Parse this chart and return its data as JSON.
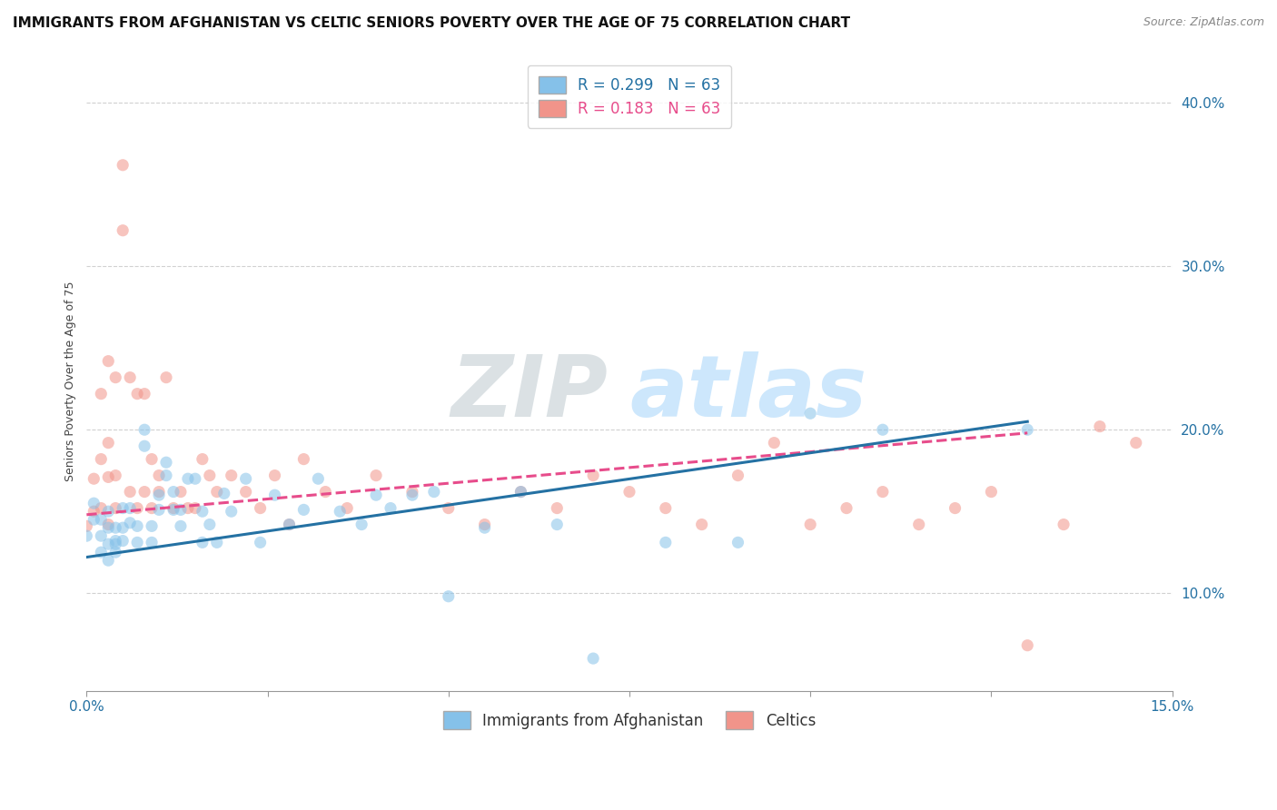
{
  "title": "IMMIGRANTS FROM AFGHANISTAN VS CELTIC SENIORS POVERTY OVER THE AGE OF 75 CORRELATION CHART",
  "source": "Source: ZipAtlas.com",
  "ylabel": "Seniors Poverty Over the Age of 75",
  "xlim": [
    0.0,
    0.15
  ],
  "ylim": [
    0.04,
    0.42
  ],
  "xticks": [
    0.0,
    0.025,
    0.05,
    0.075,
    0.1,
    0.125,
    0.15
  ],
  "xtick_labels": [
    "0.0%",
    "",
    "",
    "",
    "",
    "",
    "15.0%"
  ],
  "yticks": [
    0.1,
    0.2,
    0.3,
    0.4
  ],
  "ytick_labels": [
    "10.0%",
    "20.0%",
    "30.0%",
    "40.0%"
  ],
  "blue_color": "#85c1e9",
  "pink_color": "#f1948a",
  "blue_line_color": "#2471a3",
  "pink_line_color": "#e74c8b",
  "legend_label_blue": "Immigrants from Afghanistan",
  "legend_label_pink": "Celtics",
  "watermark_zip": "ZIP",
  "watermark_atlas": "atlas",
  "blue_scatter_x": [
    0.0,
    0.001,
    0.001,
    0.002,
    0.002,
    0.002,
    0.003,
    0.003,
    0.003,
    0.003,
    0.004,
    0.004,
    0.004,
    0.004,
    0.005,
    0.005,
    0.005,
    0.006,
    0.006,
    0.007,
    0.007,
    0.008,
    0.008,
    0.009,
    0.009,
    0.01,
    0.01,
    0.011,
    0.011,
    0.012,
    0.012,
    0.013,
    0.013,
    0.014,
    0.015,
    0.016,
    0.016,
    0.017,
    0.018,
    0.019,
    0.02,
    0.022,
    0.024,
    0.026,
    0.028,
    0.03,
    0.032,
    0.035,
    0.038,
    0.04,
    0.042,
    0.045,
    0.048,
    0.05,
    0.055,
    0.06,
    0.065,
    0.07,
    0.08,
    0.09,
    0.1,
    0.11,
    0.13
  ],
  "blue_scatter_y": [
    0.135,
    0.145,
    0.155,
    0.125,
    0.135,
    0.145,
    0.13,
    0.14,
    0.15,
    0.12,
    0.125,
    0.13,
    0.14,
    0.132,
    0.14,
    0.152,
    0.132,
    0.143,
    0.152,
    0.131,
    0.141,
    0.2,
    0.19,
    0.141,
    0.131,
    0.151,
    0.16,
    0.18,
    0.172,
    0.151,
    0.162,
    0.141,
    0.151,
    0.17,
    0.17,
    0.131,
    0.15,
    0.142,
    0.131,
    0.161,
    0.15,
    0.17,
    0.131,
    0.16,
    0.142,
    0.151,
    0.17,
    0.15,
    0.142,
    0.16,
    0.152,
    0.16,
    0.162,
    0.098,
    0.14,
    0.162,
    0.142,
    0.06,
    0.131,
    0.131,
    0.21,
    0.2,
    0.2
  ],
  "pink_scatter_x": [
    0.0,
    0.001,
    0.001,
    0.002,
    0.002,
    0.002,
    0.003,
    0.003,
    0.003,
    0.003,
    0.004,
    0.004,
    0.004,
    0.005,
    0.005,
    0.006,
    0.006,
    0.007,
    0.007,
    0.008,
    0.008,
    0.009,
    0.009,
    0.01,
    0.01,
    0.011,
    0.012,
    0.013,
    0.014,
    0.015,
    0.016,
    0.017,
    0.018,
    0.02,
    0.022,
    0.024,
    0.026,
    0.028,
    0.03,
    0.033,
    0.036,
    0.04,
    0.045,
    0.05,
    0.055,
    0.06,
    0.065,
    0.07,
    0.075,
    0.08,
    0.085,
    0.09,
    0.095,
    0.1,
    0.105,
    0.11,
    0.115,
    0.12,
    0.125,
    0.13,
    0.135,
    0.14,
    0.145
  ],
  "pink_scatter_y": [
    0.141,
    0.15,
    0.17,
    0.152,
    0.182,
    0.222,
    0.142,
    0.171,
    0.192,
    0.242,
    0.232,
    0.172,
    0.152,
    0.322,
    0.362,
    0.232,
    0.162,
    0.152,
    0.222,
    0.222,
    0.162,
    0.152,
    0.182,
    0.162,
    0.172,
    0.232,
    0.152,
    0.162,
    0.152,
    0.152,
    0.182,
    0.172,
    0.162,
    0.172,
    0.162,
    0.152,
    0.172,
    0.142,
    0.182,
    0.162,
    0.152,
    0.172,
    0.162,
    0.152,
    0.142,
    0.162,
    0.152,
    0.172,
    0.162,
    0.152,
    0.142,
    0.172,
    0.192,
    0.142,
    0.152,
    0.162,
    0.142,
    0.152,
    0.162,
    0.068,
    0.142,
    0.202,
    0.192
  ],
  "blue_trend_x": [
    0.0,
    0.13
  ],
  "blue_trend_y": [
    0.122,
    0.205
  ],
  "pink_trend_x": [
    0.0,
    0.13
  ],
  "pink_trend_y": [
    0.148,
    0.198
  ],
  "background_color": "#ffffff",
  "grid_color": "#cccccc",
  "tick_color": "#2471a3",
  "title_fontsize": 11,
  "axis_label_fontsize": 9,
  "tick_fontsize": 11,
  "source_fontsize": 9
}
